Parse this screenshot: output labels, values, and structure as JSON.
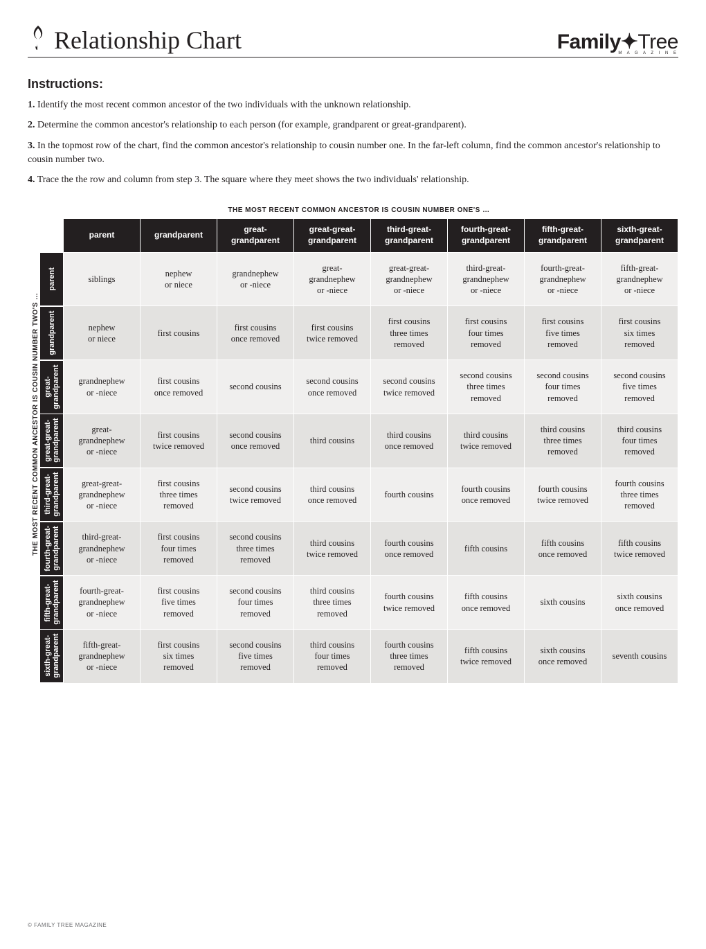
{
  "header": {
    "title": "Relationship Chart",
    "brand_main": "Family",
    "brand_sub": "Tree",
    "brand_tagline": "M A G A Z I N E"
  },
  "instructions": {
    "heading": "Instructions:",
    "steps": [
      {
        "num": "1.",
        "text": "Identify the most recent common ancestor of the two individuals with the unknown relationship."
      },
      {
        "num": "2.",
        "text": "Determine the common ancestor's relationship to each person (for example, grandparent or great-grandparent)."
      },
      {
        "num": "3.",
        "text": "In the topmost row of the chart, find the common ancestor's relationship to cousin number one. In the far-left column, find the common ancestor's relationship to cousin number two."
      },
      {
        "num": "4.",
        "text": "Trace the the row and column from step 3. The square where they meet shows the two individuals' relationship."
      }
    ]
  },
  "chart": {
    "top_axis_label": "THE MOST RECENT COMMON ANCESTOR IS COUSIN NUMBER ONE'S …",
    "left_axis_label": "THE MOST RECENT COMMON ANCESTOR IS COUSIN NUMBER TWO'S …",
    "columns": [
      "parent",
      "grandparent",
      "great-\ngrandparent",
      "great-great-\ngrandparent",
      "third-great-\ngrandparent",
      "fourth-great-\ngrandparent",
      "fifth-great-\ngrandparent",
      "sixth-great-\ngrandparent"
    ],
    "rows": [
      "parent",
      "grandparent",
      "great-\ngrandparent",
      "great-great-\ngrandparent",
      "third-great-\ngrandparent",
      "fourth-great-\ngrandparent",
      "fifth-great-\ngrandparent",
      "sixth-great-\ngrandparent"
    ],
    "cells": [
      [
        "siblings",
        "nephew\nor niece",
        "grandnephew\nor -niece",
        "great-\ngrandnephew\nor -niece",
        "great-great-\ngrandnephew\nor -niece",
        "third-great-\ngrandnephew\nor -niece",
        "fourth-great-\ngrandnephew\nor -niece",
        "fifth-great-\ngrandnephew\nor -niece"
      ],
      [
        "nephew\nor niece",
        "first cousins",
        "first cousins\nonce removed",
        "first cousins\ntwice removed",
        "first cousins\nthree times\nremoved",
        "first cousins\nfour times\nremoved",
        "first cousins\nfive times\nremoved",
        "first cousins\nsix times\nremoved"
      ],
      [
        "grandnephew\nor -niece",
        "first cousins\nonce removed",
        "second cousins",
        "second cousins\nonce removed",
        "second cousins\ntwice removed",
        "second cousins\nthree times\nremoved",
        "second cousins\nfour times\nremoved",
        "second cousins\nfive times\nremoved"
      ],
      [
        "great-\ngrandnephew\nor -niece",
        "first cousins\ntwice removed",
        "second cousins\nonce removed",
        "third cousins",
        "third cousins\nonce removed",
        "third cousins\ntwice removed",
        "third cousins\nthree times\nremoved",
        "third cousins\nfour times\nremoved"
      ],
      [
        "great-great-\ngrandnephew\nor -niece",
        "first cousins\nthree times\nremoved",
        "second cousins\ntwice removed",
        "third cousins\nonce removed",
        "fourth cousins",
        "fourth cousins\nonce removed",
        "fourth cousins\ntwice removed",
        "fourth cousins\nthree times\nremoved"
      ],
      [
        "third-great-\ngrandnephew\nor -niece",
        "first cousins\nfour times\nremoved",
        "second cousins\nthree times\nremoved",
        "third cousins\ntwice removed",
        "fourth cousins\nonce removed",
        "fifth cousins",
        "fifth cousins\nonce removed",
        "fifth cousins\ntwice removed"
      ],
      [
        "fourth-great-\ngrandnephew\nor -niece",
        "first cousins\nfive times\nremoved",
        "second cousins\nfour times\nremoved",
        "third cousins\nthree times\nremoved",
        "fourth cousins\ntwice removed",
        "fifth cousins\nonce removed",
        "sixth cousins",
        "sixth cousins\nonce removed"
      ],
      [
        "fifth-great-\ngrandnephew\nor -niece",
        "first cousins\nsix times\nremoved",
        "second cousins\nfive times\nremoved",
        "third cousins\nfour times\nremoved",
        "fourth cousins\nthree times\nremoved",
        "fifth cousins\ntwice removed",
        "sixth cousins\nonce removed",
        "seventh cousins"
      ]
    ],
    "colors": {
      "header_bg": "#231f20",
      "header_fg": "#ffffff",
      "light_cell": "#f0efee",
      "dark_cell": "#e3e2e0",
      "border": "#ffffff"
    }
  },
  "footer": "© FAMILY TREE MAGAZINE"
}
